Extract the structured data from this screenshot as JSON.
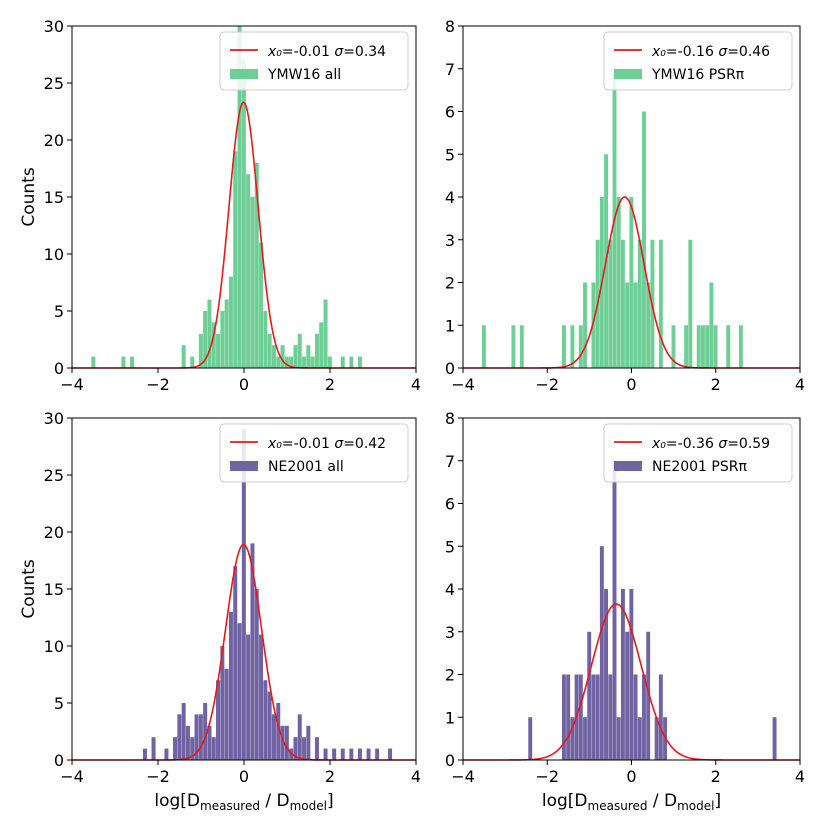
{
  "chart_data": [
    {
      "type": "bar",
      "xlim": [
        -4,
        4
      ],
      "ylim": [
        0,
        30
      ],
      "xticks": [
        -4,
        -2,
        0,
        2,
        4
      ],
      "yticks": [
        0,
        5,
        10,
        15,
        20,
        25,
        30
      ],
      "ylabel": "Counts",
      "xlabel": "",
      "bin_width": 0.1,
      "bar_color": "#6dcf95",
      "fit_color": "#e8191c",
      "legend_position": "top-right",
      "legend": {
        "fit": {
          "x0_label": "x₀",
          "x0": "-0.01",
          "sigma_label": "σ",
          "sigma": "0.34"
        },
        "hist": "YMW16 all"
      },
      "fit": {
        "amplitude": 23.3,
        "x0": -0.01,
        "sigma": 0.34
      },
      "bins_x": [
        -3.5,
        -2.8,
        -2.6,
        -1.4,
        -1.2,
        -1.0,
        -0.9,
        -0.8,
        -0.7,
        -0.6,
        -0.5,
        -0.4,
        -0.3,
        -0.2,
        -0.1,
        0.0,
        0.1,
        0.2,
        0.3,
        0.4,
        0.5,
        0.6,
        0.7,
        0.8,
        0.9,
        1.0,
        1.1,
        1.2,
        1.3,
        1.4,
        1.5,
        1.6,
        1.7,
        1.8,
        1.9,
        2.0,
        2.3,
        2.5,
        2.7
      ],
      "counts": [
        1,
        1,
        1,
        2,
        1,
        3,
        5,
        6,
        4,
        3,
        5,
        6,
        8,
        19,
        30,
        27,
        17,
        15,
        18,
        11,
        5,
        3,
        2,
        1,
        2,
        1,
        1,
        2,
        3,
        1,
        2,
        1,
        3,
        4,
        6,
        1,
        1,
        1,
        1
      ]
    },
    {
      "type": "bar",
      "xlim": [
        -4,
        4
      ],
      "ylim": [
        0,
        8
      ],
      "xticks": [
        -4,
        -2,
        0,
        2,
        4
      ],
      "yticks": [
        0,
        1,
        2,
        3,
        4,
        5,
        6,
        7,
        8
      ],
      "ylabel": "",
      "xlabel": "",
      "bin_width": 0.1,
      "bar_color": "#6dcf95",
      "fit_color": "#e8191c",
      "legend_position": "top-right",
      "legend": {
        "fit": {
          "x0_label": "x₀",
          "x0": "-0.16",
          "sigma_label": "σ",
          "sigma": "0.46"
        },
        "hist": "YMW16 PSRπ"
      },
      "fit": {
        "amplitude": 4.0,
        "x0": -0.16,
        "sigma": 0.46
      },
      "bins_x": [
        -3.5,
        -2.8,
        -2.6,
        -1.6,
        -1.4,
        -1.2,
        -1.1,
        -0.9,
        -0.8,
        -0.7,
        -0.6,
        -0.5,
        -0.4,
        -0.3,
        -0.2,
        -0.1,
        0.0,
        0.1,
        0.2,
        0.3,
        0.4,
        0.5,
        0.7,
        1.0,
        1.3,
        1.4,
        1.6,
        1.7,
        1.8,
        1.9,
        2.0,
        2.3,
        2.6
      ],
      "counts": [
        1,
        1,
        1,
        1,
        1,
        1,
        2,
        2,
        3,
        4,
        5,
        3,
        7,
        4,
        3,
        2,
        4,
        2,
        3,
        6,
        2,
        3,
        3,
        1,
        1,
        3,
        1,
        1,
        1,
        2,
        1,
        1,
        1
      ]
    },
    {
      "type": "bar",
      "xlim": [
        -4,
        4
      ],
      "ylim": [
        0,
        30
      ],
      "xticks": [
        -4,
        -2,
        0,
        2,
        4
      ],
      "yticks": [
        0,
        5,
        10,
        15,
        20,
        25,
        30
      ],
      "ylabel": "Counts",
      "xlabel": "log[D_measured / D_model]",
      "bin_width": 0.1,
      "bar_color": "#7063a3",
      "fit_color": "#e8191c",
      "legend_position": "top-right",
      "legend": {
        "fit": {
          "x0_label": "x₀",
          "x0": "-0.01",
          "sigma_label": "σ",
          "sigma": "0.42"
        },
        "hist": "NE2001 all"
      },
      "fit": {
        "amplitude": 18.9,
        "x0": -0.01,
        "sigma": 0.42
      },
      "bins_x": [
        -2.3,
        -2.1,
        -1.8,
        -1.6,
        -1.5,
        -1.4,
        -1.3,
        -1.2,
        -1.1,
        -1.0,
        -0.9,
        -0.8,
        -0.7,
        -0.6,
        -0.5,
        -0.4,
        -0.3,
        -0.2,
        -0.1,
        0.0,
        0.1,
        0.2,
        0.3,
        0.4,
        0.5,
        0.6,
        0.7,
        0.8,
        0.9,
        1.0,
        1.1,
        1.2,
        1.3,
        1.4,
        1.5,
        1.7,
        1.9,
        2.1,
        2.3,
        2.5,
        2.7,
        2.9,
        3.1,
        3.4
      ],
      "counts": [
        1,
        2,
        1,
        2,
        4,
        5,
        3,
        2,
        4,
        4,
        5,
        3,
        2,
        7,
        10,
        8,
        13,
        17,
        12,
        29,
        11,
        19,
        15,
        11,
        7,
        6,
        4,
        5,
        3,
        3,
        1,
        2,
        4,
        2,
        3,
        2,
        1,
        1,
        1,
        1,
        1,
        1,
        1,
        1
      ]
    },
    {
      "type": "bar",
      "xlim": [
        -4,
        4
      ],
      "ylim": [
        0,
        8
      ],
      "xticks": [
        -4,
        -2,
        0,
        2,
        4
      ],
      "yticks": [
        0,
        1,
        2,
        3,
        4,
        5,
        6,
        7,
        8
      ],
      "ylabel": "",
      "xlabel": "log[D_measured / D_model]",
      "bin_width": 0.1,
      "bar_color": "#7063a3",
      "fit_color": "#e8191c",
      "legend_position": "top-right",
      "legend": {
        "fit": {
          "x0_label": "x₀",
          "x0": "-0.36",
          "sigma_label": "σ",
          "sigma": "0.59"
        },
        "hist": "NE2001 PSRπ"
      },
      "fit": {
        "amplitude": 3.65,
        "x0": -0.36,
        "sigma": 0.59
      },
      "bins_x": [
        -2.4,
        -1.6,
        -1.5,
        -1.4,
        -1.3,
        -1.2,
        -1.1,
        -1.0,
        -0.9,
        -0.8,
        -0.7,
        -0.6,
        -0.5,
        -0.4,
        -0.3,
        -0.2,
        -0.1,
        0.0,
        0.1,
        0.2,
        0.3,
        0.4,
        0.6,
        0.7,
        0.8,
        3.4
      ],
      "counts": [
        1,
        2,
        2,
        1,
        2,
        2,
        1,
        3,
        2,
        2,
        5,
        4,
        2,
        7,
        1,
        4,
        3,
        4,
        2,
        1,
        2,
        3,
        1,
        2,
        1,
        1
      ]
    }
  ]
}
